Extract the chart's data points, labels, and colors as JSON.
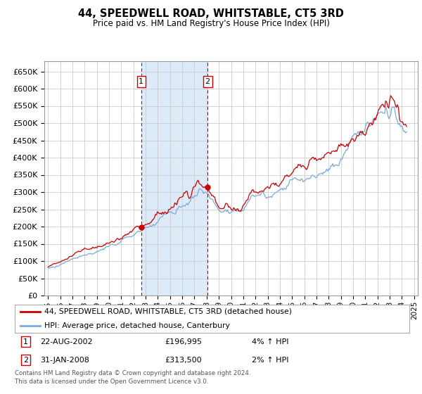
{
  "title": "44, SPEEDWELL ROAD, WHITSTABLE, CT5 3RD",
  "subtitle": "Price paid vs. HM Land Registry's House Price Index (HPI)",
  "ylim": [
    0,
    680000
  ],
  "ylabel_ticks": [
    0,
    50000,
    100000,
    150000,
    200000,
    250000,
    300000,
    350000,
    400000,
    450000,
    500000,
    550000,
    600000,
    650000
  ],
  "xlim": [
    1994.7,
    2025.3
  ],
  "purchase1_year": 2002.64,
  "purchase1_price": 196995,
  "purchase2_year": 2008.08,
  "purchase2_price": 313500,
  "shade_color": "#ddeaf8",
  "grid_color": "#cccccc",
  "hpi_color": "#7aaadd",
  "price_color": "#cc0000",
  "background_color": "#ffffff",
  "legend_line1": "44, SPEEDWELL ROAD, WHITSTABLE, CT5 3RD (detached house)",
  "legend_line2": "HPI: Average price, detached house, Canterbury",
  "footer": "Contains HM Land Registry data © Crown copyright and database right 2024.\nThis data is licensed under the Open Government Licence v3.0."
}
